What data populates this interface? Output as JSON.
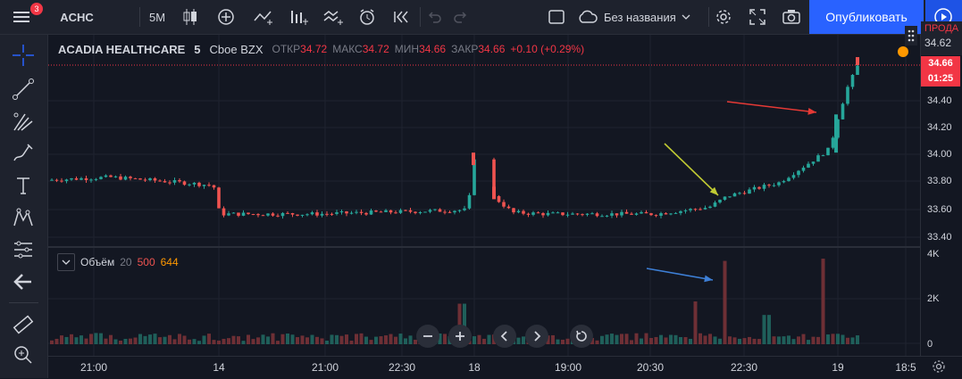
{
  "topbar": {
    "notif_count": "3",
    "symbol": "ACHC",
    "interval": "5M",
    "layout_name": "Без названия",
    "publish_label": "Опубликовать"
  },
  "legend": {
    "symbol_name": "ACADIA HEALTHCARE",
    "interval": "5",
    "exchange": "Cboe BZX",
    "open_label": "ОТКР",
    "open_value": "34.72",
    "high_label": "МАКС",
    "high_value": "34.72",
    "low_label": "МИН",
    "low_value": "34.66",
    "close_label": "ЗАКР",
    "close_value": "34.66",
    "change": "+0.10 (+0.29%)"
  },
  "volume_legend": {
    "label": "Объём",
    "length": "20",
    "value_red": "500",
    "value_orange": "644"
  },
  "price_axis": {
    "labels": [
      "34.40",
      "34.20",
      "34.00",
      "33.80",
      "33.60",
      "33.40"
    ],
    "volume_labels": [
      "4K",
      "2K",
      "0"
    ],
    "last_price": "34.66",
    "countdown": "01:25",
    "order_side": "ПРОДА",
    "order_price": "34.62"
  },
  "time_axis": {
    "labels": [
      "21:00",
      "14",
      "21:00",
      "22:30",
      "18",
      "19:00",
      "20:30",
      "22:30",
      "19",
      "18:5"
    ]
  },
  "colors": {
    "up": "#26a69a",
    "down": "#ef5350",
    "accent": "#2962ff",
    "arrow_red": "#e53935",
    "arrow_yellow": "#c0ca33",
    "arrow_blue": "#3d7fd6"
  },
  "chart_data": {
    "type": "candlestick",
    "y_range": [
      33.35,
      34.75
    ],
    "candles_approx_path": [
      {
        "time": "21:00",
        "price": 33.82
      },
      {
        "time": "14",
        "price": 33.55
      },
      {
        "time": "22:30",
        "price": 33.57
      },
      {
        "time": "18",
        "price": 33.98
      },
      {
        "time": "19:00",
        "price": 33.58
      },
      {
        "time": "20:30",
        "price": 33.58
      },
      {
        "time": "22:30",
        "price": 33.72
      },
      {
        "time": "19",
        "price": 34.3
      },
      {
        "time": "18:5",
        "price": 34.66
      }
    ],
    "volume_range": [
      0,
      4000
    ]
  }
}
